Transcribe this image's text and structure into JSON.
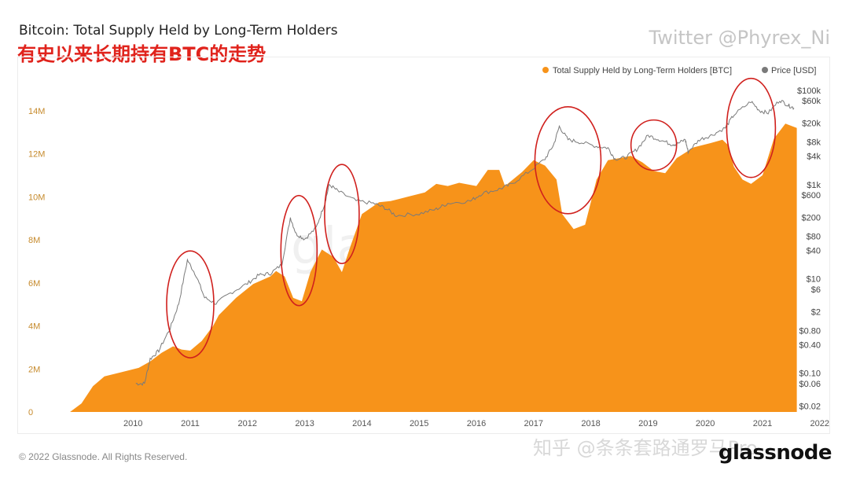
{
  "header": {
    "title": "Bitcoin: Total Supply Held by Long-Term Holders",
    "subtitle": "有史以来长期持有BTC的走势",
    "credit": "Twitter @Phyrex_Ni"
  },
  "footer": {
    "copyright": "© 2022 Glassnode. All Rights Reserved.",
    "watermark_zh": "知乎 @条条套路通罗马Pro",
    "brand": "glassnode"
  },
  "colors": {
    "supply": "#f7931a",
    "price": "#7a7a7a",
    "highlight": "#d0201d"
  },
  "chart_data": {
    "type": "area",
    "title": "Bitcoin: Total Supply Held by Long-Term Holders",
    "legend": [
      "Total Supply Held by Long-Term Holders [BTC]",
      "Price [USD]"
    ],
    "legend_position": "top-right",
    "x_ticks": [
      "2010",
      "2011",
      "2012",
      "2013",
      "2014",
      "2015",
      "2016",
      "2017",
      "2018",
      "2019",
      "2020",
      "2021",
      "2022"
    ],
    "y_left_ticks": [
      "0",
      "2M",
      "4M",
      "6M",
      "8M",
      "10M",
      "12M",
      "14M"
    ],
    "y_left_lim": [
      0,
      15200000
    ],
    "y_right_ticks": [
      {
        "label": "$0.02",
        "value": 0.02
      },
      {
        "label": "$0.06",
        "value": 0.06
      },
      {
        "label": "$0.10",
        "value": 0.1
      },
      {
        "label": "$0.40",
        "value": 0.4
      },
      {
        "label": "$0.80",
        "value": 0.8
      },
      {
        "label": "$2",
        "value": 2
      },
      {
        "label": "$6",
        "value": 6
      },
      {
        "label": "$10",
        "value": 10
      },
      {
        "label": "$40",
        "value": 40
      },
      {
        "label": "$80",
        "value": 80
      },
      {
        "label": "$200",
        "value": 200
      },
      {
        "label": "$600",
        "value": 600
      },
      {
        "label": "$1k",
        "value": 1000
      },
      {
        "label": "$4k",
        "value": 4000
      },
      {
        "label": "$8k",
        "value": 8000
      },
      {
        "label": "$20k",
        "value": 20000
      },
      {
        "label": "$60k",
        "value": 60000
      },
      {
        "label": "$100k",
        "value": 100000
      }
    ],
    "y_right_scale": "log",
    "y_right_lim": [
      0.015,
      130000
    ],
    "series": [
      {
        "name": "Total Supply Held by Long-Term Holders [BTC]",
        "points": [
          [
            2009.4,
            0
          ],
          [
            2009.6,
            400000
          ],
          [
            2009.8,
            1200000
          ],
          [
            2010.0,
            1650000
          ],
          [
            2010.3,
            1850000
          ],
          [
            2010.6,
            2050000
          ],
          [
            2010.8,
            2350000
          ],
          [
            2011.0,
            2750000
          ],
          [
            2011.2,
            3050000
          ],
          [
            2011.35,
            2900000
          ],
          [
            2011.5,
            2850000
          ],
          [
            2011.7,
            3300000
          ],
          [
            2011.9,
            4000000
          ],
          [
            2012.0,
            4500000
          ],
          [
            2012.3,
            5300000
          ],
          [
            2012.6,
            5950000
          ],
          [
            2012.9,
            6300000
          ],
          [
            2013.0,
            6550000
          ],
          [
            2013.15,
            6300000
          ],
          [
            2013.3,
            5300000
          ],
          [
            2013.45,
            5150000
          ],
          [
            2013.6,
            6500000
          ],
          [
            2013.8,
            7550000
          ],
          [
            2014.0,
            7200000
          ],
          [
            2014.15,
            6500000
          ],
          [
            2014.3,
            7700000
          ],
          [
            2014.5,
            9200000
          ],
          [
            2014.8,
            9750000
          ],
          [
            2015.0,
            9800000
          ],
          [
            2015.3,
            10000000
          ],
          [
            2015.6,
            10200000
          ],
          [
            2015.8,
            10600000
          ],
          [
            2016.0,
            10500000
          ],
          [
            2016.2,
            10650000
          ],
          [
            2016.5,
            10500000
          ],
          [
            2016.7,
            11250000
          ],
          [
            2016.9,
            11250000
          ],
          [
            2017.0,
            10500000
          ],
          [
            2017.3,
            11150000
          ],
          [
            2017.5,
            11700000
          ],
          [
            2017.7,
            11450000
          ],
          [
            2017.9,
            10800000
          ],
          [
            2018.0,
            9200000
          ],
          [
            2018.2,
            8500000
          ],
          [
            2018.4,
            8700000
          ],
          [
            2018.6,
            10800000
          ],
          [
            2018.8,
            11700000
          ],
          [
            2019.0,
            11800000
          ],
          [
            2019.2,
            11900000
          ],
          [
            2019.4,
            11600000
          ],
          [
            2019.6,
            11200000
          ],
          [
            2019.8,
            11100000
          ],
          [
            2020.0,
            11800000
          ],
          [
            2020.3,
            12300000
          ],
          [
            2020.6,
            12500000
          ],
          [
            2020.8,
            12650000
          ],
          [
            2020.9,
            12400000
          ],
          [
            2021.0,
            11400000
          ],
          [
            2021.15,
            10800000
          ],
          [
            2021.3,
            10600000
          ],
          [
            2021.5,
            11000000
          ],
          [
            2021.7,
            12700000
          ],
          [
            2021.9,
            13400000
          ],
          [
            2022.1,
            13200000
          ]
        ]
      },
      {
        "name": "Price [USD]",
        "points": [
          [
            2010.55,
            0.06
          ],
          [
            2010.7,
            0.06
          ],
          [
            2010.8,
            0.2
          ],
          [
            2010.95,
            0.3
          ],
          [
            2011.15,
            0.9
          ],
          [
            2011.3,
            3
          ],
          [
            2011.45,
            25
          ],
          [
            2011.6,
            12
          ],
          [
            2011.75,
            4
          ],
          [
            2011.95,
            3
          ],
          [
            2012.2,
            5
          ],
          [
            2012.5,
            8
          ],
          [
            2012.7,
            12
          ],
          [
            2012.9,
            13
          ],
          [
            2013.1,
            20
          ],
          [
            2013.25,
            200
          ],
          [
            2013.35,
            90
          ],
          [
            2013.5,
            70
          ],
          [
            2013.7,
            120
          ],
          [
            2013.85,
            400
          ],
          [
            2013.93,
            1000
          ],
          [
            2014.1,
            700
          ],
          [
            2014.4,
            450
          ],
          [
            2014.7,
            400
          ],
          [
            2014.9,
            320
          ],
          [
            2015.1,
            220
          ],
          [
            2015.5,
            240
          ],
          [
            2015.8,
            300
          ],
          [
            2016.0,
            400
          ],
          [
            2016.4,
            450
          ],
          [
            2016.6,
            650
          ],
          [
            2016.9,
            800
          ],
          [
            2017.1,
            1000
          ],
          [
            2017.4,
            1800
          ],
          [
            2017.7,
            3500
          ],
          [
            2017.85,
            7000
          ],
          [
            2017.95,
            17000
          ],
          [
            2018.1,
            9000
          ],
          [
            2018.3,
            8000
          ],
          [
            2018.6,
            6500
          ],
          [
            2018.8,
            6000
          ],
          [
            2018.92,
            3500
          ],
          [
            2019.1,
            3700
          ],
          [
            2019.3,
            5500
          ],
          [
            2019.5,
            11000
          ],
          [
            2019.7,
            9000
          ],
          [
            2019.9,
            7200
          ],
          [
            2020.0,
            7200
          ],
          [
            2020.15,
            9000
          ],
          [
            2020.2,
            5000
          ],
          [
            2020.4,
            9000
          ],
          [
            2020.6,
            11000
          ],
          [
            2020.85,
            16000
          ],
          [
            2021.0,
            30000
          ],
          [
            2021.3,
            58000
          ],
          [
            2021.45,
            37000
          ],
          [
            2021.6,
            33000
          ],
          [
            2021.8,
            62000
          ],
          [
            2021.95,
            48000
          ],
          [
            2022.05,
            42000
          ]
        ]
      }
    ],
    "annotations": [
      {
        "type": "ellipse",
        "x": 2011.5,
        "y": 5000000
      },
      {
        "type": "ellipse",
        "x": 2013.4,
        "y": 7500000
      },
      {
        "type": "ellipse",
        "x": 2014.15,
        "y": 9200000
      },
      {
        "type": "ellipse",
        "x": 2018.1,
        "y": 11700000
      },
      {
        "type": "ellipse",
        "x": 2019.6,
        "y": 12400000
      },
      {
        "type": "ellipse",
        "x": 2021.3,
        "y": 13200000
      }
    ]
  }
}
